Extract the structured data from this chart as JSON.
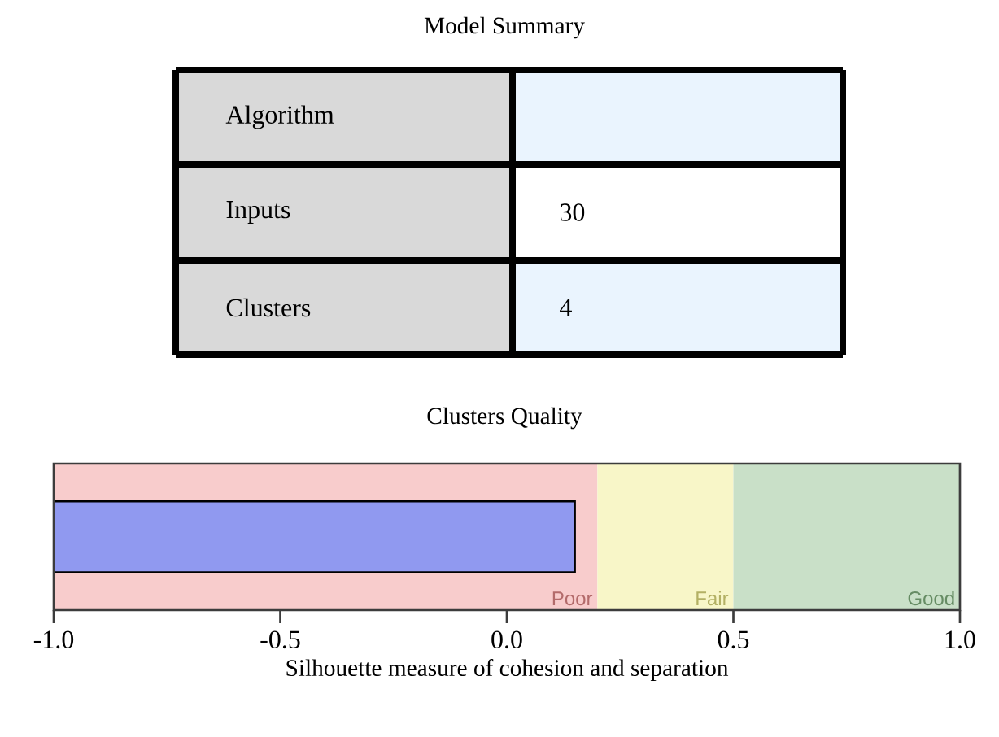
{
  "chart_data": [
    {
      "type": "other",
      "title": "Model Summary",
      "annotations": [
        "Algorithm",
        "Inputs",
        "30",
        "Clusters",
        "4"
      ]
    },
    {
      "type": "bar",
      "orientation": "horizontal",
      "title": "Clusters Quality",
      "xlabel": "Silhouette measure of  cohesion and separation",
      "categories": [
        null
      ],
      "values": [
        1.15
      ],
      "base": [
        -1
      ],
      "color": "#9099f0",
      "xlim": [
        -1,
        1
      ],
      "xticks": [
        {
          "value": -1,
          "label": "-1.0"
        },
        {
          "value": -0.5,
          "label": "-0.5"
        },
        {
          "value": 0,
          "label": "0.0"
        },
        {
          "value": 0.5,
          "label": "0.5"
        },
        {
          "value": 1,
          "label": "1.0"
        }
      ],
      "bands": [
        {
          "axis": "x",
          "from": -1,
          "to": 0.2,
          "label": "Poor",
          "color": "#f8cccc"
        },
        {
          "axis": "x",
          "from": 0.2,
          "to": 0.5,
          "label": "Fair",
          "color": "#f8f6c8"
        },
        {
          "axis": "x",
          "from": 0.5,
          "to": 1,
          "label": "Good",
          "color": "#c9e0c8"
        }
      ]
    }
  ]
}
